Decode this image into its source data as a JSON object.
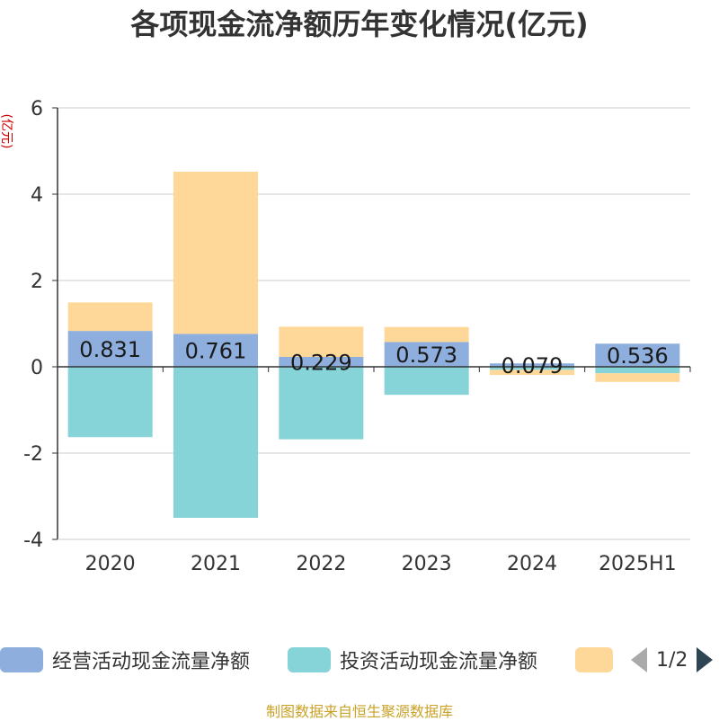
{
  "title": "各项现金流净额历年变化情况(亿元)",
  "unit": "(亿元)",
  "source": "制图数据来自恒生聚源数据库",
  "colors": {
    "operating": "#8eaedd",
    "investing": "#86d4d8",
    "financing": "#fed899"
  },
  "legend": {
    "items": [
      {
        "label": "经营活动现金流量净额",
        "color": "#8eaedd"
      },
      {
        "label": "投资活动现金流量净额",
        "color": "#86d4d8"
      },
      {
        "label": "",
        "color": "#fed899"
      }
    ],
    "pager": "1/2"
  },
  "chart_data": {
    "type": "bar",
    "stacked": true,
    "categories": [
      "2020",
      "2021",
      "2022",
      "2023",
      "2024",
      "2025H1"
    ],
    "ylim": [
      -4,
      6
    ],
    "yticks": [
      -4,
      -2,
      0,
      2,
      4,
      6
    ],
    "grid": true,
    "series": [
      {
        "name": "经营活动现金流量净额",
        "values": [
          0.831,
          0.761,
          0.229,
          0.573,
          0.079,
          0.536
        ],
        "labels": [
          "0.831",
          "0.761",
          "0.229",
          "0.573",
          "0.079",
          "0.536"
        ]
      },
      {
        "name": "投资活动现金流量净额",
        "values": [
          -1.63,
          -3.5,
          -1.68,
          -0.65,
          -0.07,
          -0.15
        ]
      },
      {
        "values": [
          0.66,
          3.76,
          0.7,
          0.35,
          -0.12,
          -0.2
        ]
      }
    ]
  }
}
